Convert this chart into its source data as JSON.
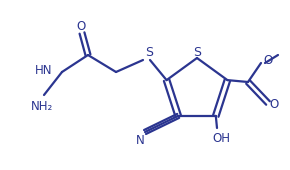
{
  "line_color": "#2b3590",
  "bg_color": "#ffffff",
  "line_width": 1.6,
  "font_size": 8.5,
  "font_color": "#2b3590",
  "figsize": [
    2.9,
    1.7
  ],
  "dpi": 100,
  "xlim": [
    0,
    290
  ],
  "ylim": [
    0,
    170
  ]
}
